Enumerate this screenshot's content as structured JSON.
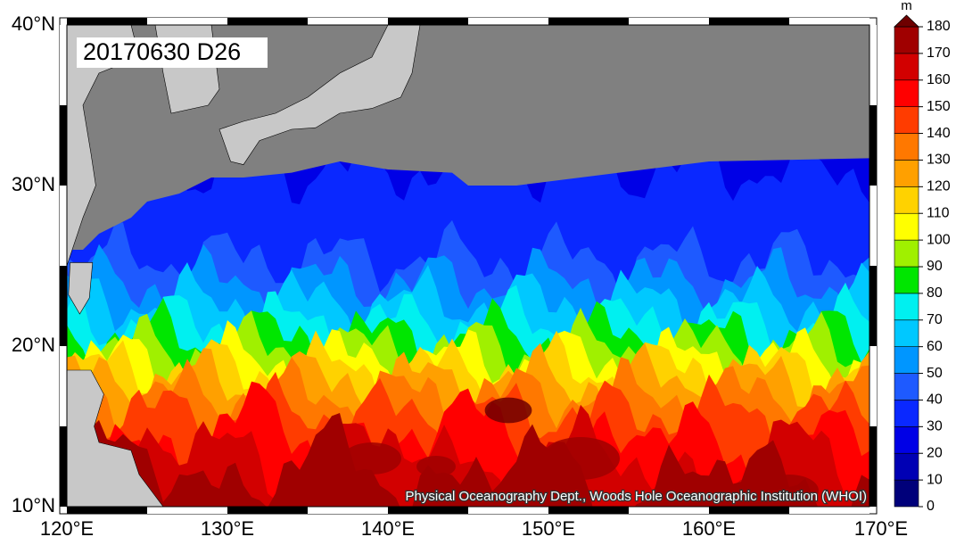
{
  "title": "20170630 D26",
  "credit": "Physical Oceanography Dept., Woods Hole Oceanographic Institution (WHOI)",
  "lat_labels": [
    "40°N",
    "30°N",
    "20°N",
    "10°N"
  ],
  "lon_labels": [
    "120°E",
    "130°E",
    "140°E",
    "150°E",
    "160°E",
    "170°E"
  ],
  "colorbar": {
    "unit": "m",
    "ticks": [
      0,
      10,
      20,
      30,
      40,
      50,
      60,
      70,
      80,
      90,
      100,
      110,
      120,
      130,
      140,
      150,
      160,
      170,
      180
    ],
    "colors": [
      "#00007a",
      "#0000b4",
      "#0000e6",
      "#0a28ff",
      "#1e5aff",
      "#0096ff",
      "#00c8ff",
      "#00f0f0",
      "#00e600",
      "#a0f000",
      "#ffff00",
      "#ffd200",
      "#ffa000",
      "#ff7800",
      "#ff3c00",
      "#ff0000",
      "#d20000",
      "#a00000",
      "#6e0000",
      "#3c0000"
    ]
  }
}
